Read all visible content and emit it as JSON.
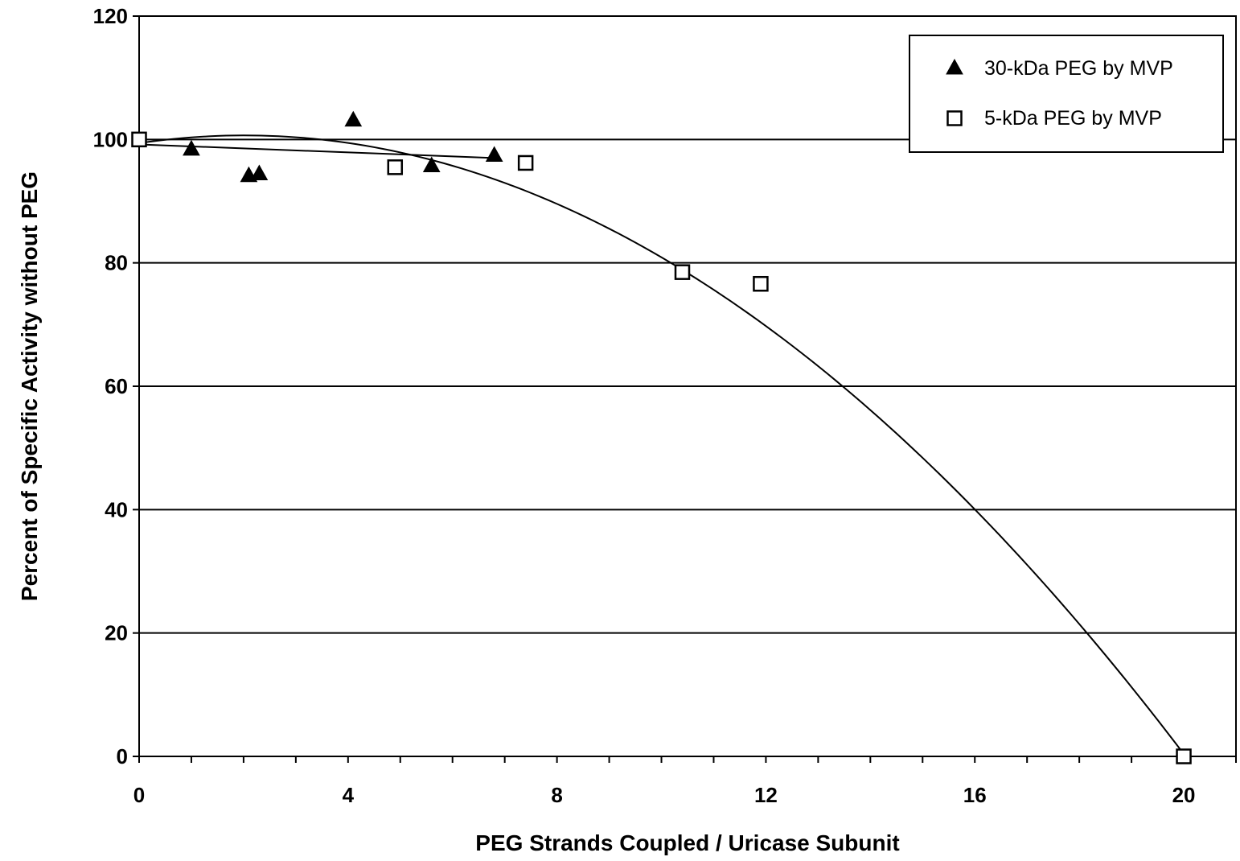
{
  "chart_data": {
    "type": "scatter",
    "title": "",
    "xlabel": "PEG  Strands  Coupled / Uricase  Subunit",
    "ylabel": "Percent  of  Specific  Activity  without  PEG",
    "xlim": [
      0,
      21
    ],
    "ylim": [
      0,
      120
    ],
    "x_ticks": [
      0,
      4,
      8,
      12,
      16,
      20
    ],
    "y_ticks": [
      0,
      20,
      40,
      60,
      80,
      100,
      120
    ],
    "grid": "horizontal",
    "legend_position": "top-right",
    "series": [
      {
        "name": "30-kDa PEG by MVP",
        "marker": "filled-triangle",
        "color": "#000000",
        "points": [
          {
            "x": 1.0,
            "y": 98.5
          },
          {
            "x": 2.1,
            "y": 94.2
          },
          {
            "x": 2.3,
            "y": 94.5
          },
          {
            "x": 4.1,
            "y": 103.2
          },
          {
            "x": 5.6,
            "y": 95.8
          },
          {
            "x": 6.8,
            "y": 97.5
          }
        ]
      },
      {
        "name": "5-kDa PEG by MVP",
        "marker": "open-square",
        "color": "#000000",
        "points": [
          {
            "x": 0.0,
            "y": 100.0
          },
          {
            "x": 4.9,
            "y": 95.5
          },
          {
            "x": 7.4,
            "y": 96.2
          },
          {
            "x": 10.4,
            "y": 78.5
          },
          {
            "x": 11.9,
            "y": 76.6
          },
          {
            "x": 20.0,
            "y": 0.0
          }
        ]
      }
    ],
    "trendlines": [
      {
        "series": "30-kDa PEG by MVP",
        "kind": "linear",
        "x_range": [
          0,
          6.8
        ],
        "y_start": 99.2,
        "y_end": 97.0
      },
      {
        "series": "5-kDa PEG by MVP",
        "kind": "quadratic",
        "coefficients": [
          99.4,
          1.25,
          -0.31
        ],
        "x_range": [
          0,
          20
        ]
      }
    ]
  }
}
